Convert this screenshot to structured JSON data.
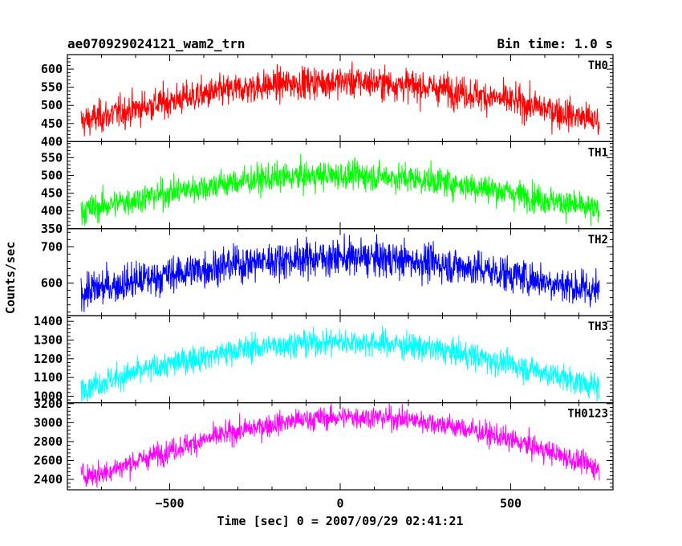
{
  "header": {
    "title": "ae070929024121_wam2_trn",
    "bin_time": "Bin time: 1.0 s"
  },
  "chart_data": {
    "type": "line",
    "xlabel": "Time [sec] 0 = 2007/09/29 02:41:21",
    "ylabel": "Counts/sec",
    "xlim": [
      -800,
      800
    ],
    "x_range": [
      -760,
      760
    ],
    "x_ticks": [
      -500,
      0,
      500
    ],
    "x_tick_labels": [
      "−500",
      "0",
      "500"
    ],
    "bin_time_s": 1.0,
    "grid": false,
    "panels": [
      {
        "name": "TH0",
        "color": "#ff0000",
        "ylim": [
          400,
          640
        ],
        "y_ticks": [
          400,
          450,
          500,
          550,
          600
        ],
        "y_tick_labels": [
          "400",
          "450",
          "500",
          "550",
          "600"
        ],
        "profile": {
          "edge_level": 455,
          "peak_level": 565,
          "peak_time": 0,
          "noise": 22
        }
      },
      {
        "name": "TH1",
        "color": "#00ff00",
        "ylim": [
          350,
          595
        ],
        "y_ticks": [
          350,
          400,
          450,
          500,
          550
        ],
        "y_tick_labels": [
          "350",
          "400",
          "450",
          "500",
          "550"
        ],
        "profile": {
          "edge_level": 400,
          "peak_level": 500,
          "peak_time": 0,
          "noise": 20
        }
      },
      {
        "name": "TH2",
        "color": "#0000ff",
        "ylim": [
          510,
          750
        ],
        "y_ticks": [
          600,
          700
        ],
        "y_tick_labels": [
          "600",
          "700"
        ],
        "profile": {
          "edge_level": 575,
          "peak_level": 670,
          "peak_time": 0,
          "noise": 25
        }
      },
      {
        "name": "TH3",
        "color": "#00ffff",
        "ylim": [
          965,
          1430
        ],
        "y_ticks": [
          1000,
          1100,
          1200,
          1300,
          1400
        ],
        "y_tick_labels": [
          "1000",
          "1100",
          "1200",
          "1300",
          "1400"
        ],
        "profile": {
          "edge_level": 1045,
          "peak_level": 1290,
          "peak_time": 0,
          "noise": 35
        }
      },
      {
        "name": "TH0123",
        "color": "#ff00ff",
        "ylim": [
          2290,
          3210
        ],
        "y_ticks": [
          2400,
          2600,
          2800,
          3000,
          3200
        ],
        "y_tick_labels": [
          "2400",
          "2600",
          "2800",
          "3000",
          "3200"
        ],
        "profile": {
          "edge_level": 2450,
          "peak_level": 3060,
          "peak_time": 50,
          "noise": 60
        }
      }
    ]
  }
}
